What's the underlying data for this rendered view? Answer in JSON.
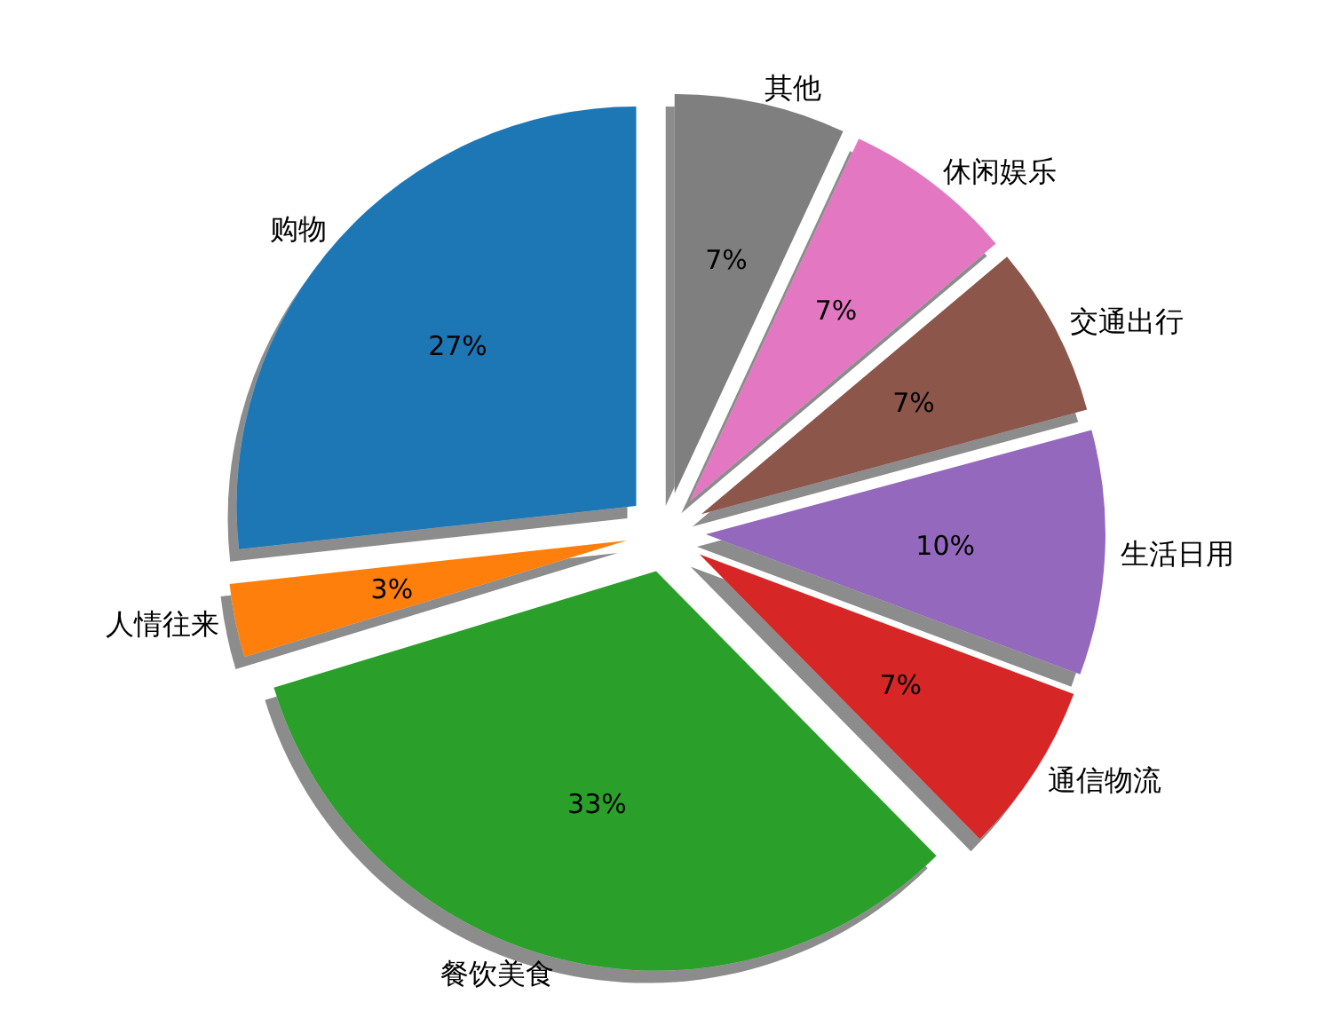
{
  "chart_data": {
    "type": "pie",
    "categories": [
      "购物",
      "人情往来",
      "餐饮美食",
      "通信物流",
      "生活日用",
      "交通出行",
      "休闲娱乐",
      "其他"
    ],
    "values": [
      27,
      3,
      33,
      7,
      10,
      7,
      7,
      7
    ],
    "colors": [
      "#1f77b4",
      "#ff7f0e",
      "#2ca02c",
      "#d62728",
      "#9467bd",
      "#8c564b",
      "#e377c2",
      "#7f7f7f"
    ],
    "value_labels": [
      "27%",
      "3%",
      "33%",
      "7%",
      "10%",
      "7%",
      "7%",
      "7%"
    ]
  }
}
